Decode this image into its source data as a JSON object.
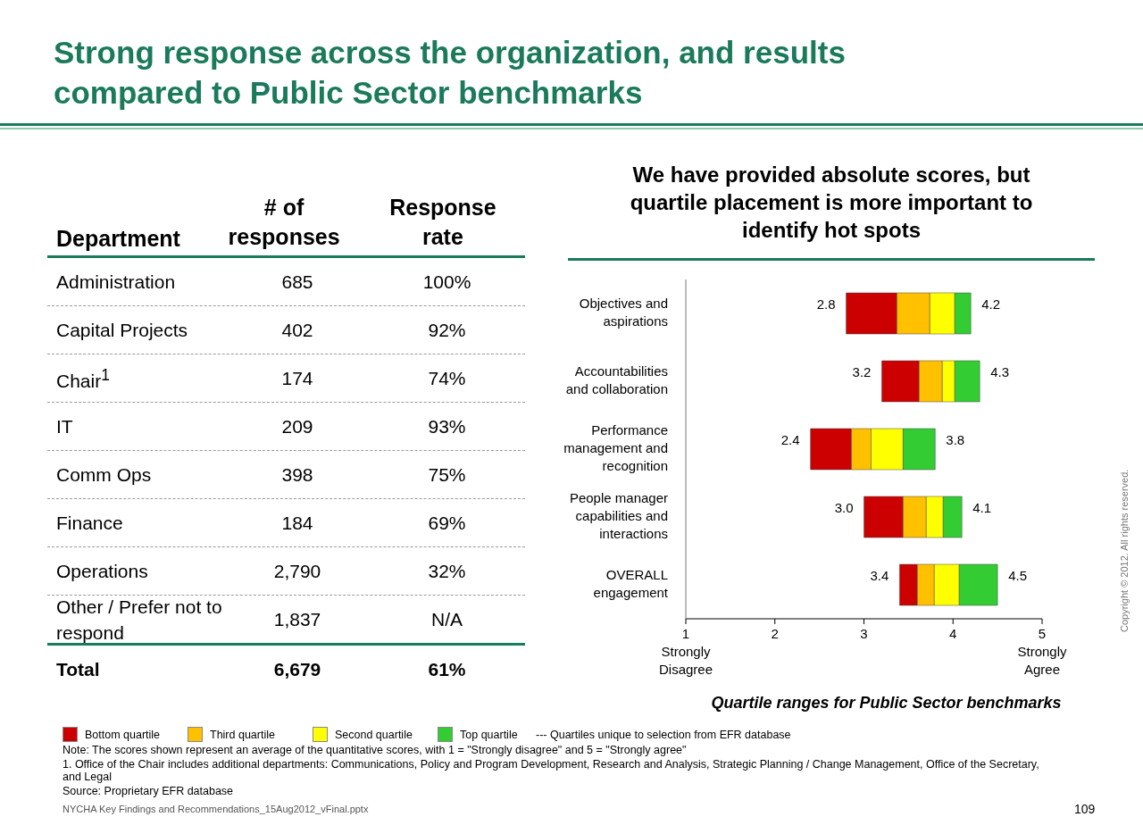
{
  "chart_data": [
    {
      "type": "other",
      "title": "Strong response across the organization, and results compared to Public Sector benchmarks",
      "xlabel": "Department",
      "categories": [
        "Administration",
        "Capital Projects",
        "Chair$^{1}$",
        "IT",
        "Comm Ops",
        "Finance",
        "Operations",
        "Other / Prefer not to respond",
        "Total"
      ],
      "series": [
        {
          "name": "# of responses",
          "values": [
            685,
            402,
            174,
            209,
            398,
            184,
            2790,
            1837,
            6679
          ],
          "value_labels": [
            "685",
            "402",
            "174",
            "209",
            "398",
            "184",
            "2,790",
            "1,837",
            "6,679"
          ]
        },
        {
          "name": "Response rate",
          "values": [
            100,
            92,
            74,
            93,
            75,
            69,
            32,
            null,
            61
          ],
          "value_labels": [
            "100%",
            "92%",
            "74%",
            "93%",
            "75%",
            "69%",
            "32%",
            "N/A",
            "61%"
          ]
        }
      ]
    },
    {
      "type": "bar",
      "orientation": "horizontal",
      "title": "We have provided absolute scores, but quartile placement is more important to identify hot spots",
      "xlabel": "Quartile ranges for Public Sector benchmarks",
      "categories": [
        "Objectives and aspirations",
        "Accountabilities and collaboration",
        "Performance management and recognition",
        "People manager capabilities and interactions",
        "OVERALL engagement"
      ],
      "series": [
        {
          "name": "Bottom quartile",
          "color": "#cc0000",
          "base": [
            2.8,
            3.2,
            2.4,
            3.0,
            3.4
          ],
          "values": [
            0.57,
            0.42,
            0.46,
            0.44,
            0.2
          ]
        },
        {
          "name": "Third quartile",
          "color": "#ffc000",
          "base": [
            3.37,
            3.62,
            2.86,
            3.44,
            3.6
          ],
          "values": [
            0.37,
            0.26,
            0.22,
            0.26,
            0.19
          ]
        },
        {
          "name": "Second quartile",
          "color": "#ffff00",
          "base": [
            3.74,
            3.88,
            3.08,
            3.7,
            3.79
          ],
          "values": [
            0.28,
            0.14,
            0.36,
            0.19,
            0.28
          ]
        },
        {
          "name": "Top quartile",
          "color": "#33cc33",
          "base": [
            4.02,
            4.02,
            3.44,
            3.89,
            4.07
          ],
          "values": [
            0.18,
            0.28,
            0.36,
            0.21,
            0.43
          ]
        }
      ],
      "xlim": [
        1,
        5
      ],
      "xticks": [
        {
          "value": 1,
          "label": "1\nStrongly\nDisagree"
        },
        2,
        3,
        4,
        {
          "value": 5,
          "label": "5\nStrongly\nAgree"
        }
      ],
      "legend": "bottom",
      "annotations": [
        "2.8",
        "4.2",
        "3.2",
        "4.3",
        "2.4",
        "3.8",
        "3.0",
        "4.1",
        "3.4",
        "4.5",
        "--- Quartiles unique to selection from EFR database",
        "Note: The scores shown represent an average of the quantitative scores, with 1 = \"Strongly disagree\" and 5 = \"Strongly agree\"",
        "1. Office of the Chair includes additional departments: Communications, Policy and Program Development, Research and Analysis, Strategic Planning / Change Management, Office of the Secretary, and Legal",
        "Source: Proprietary EFR database",
        "NYCHA Key Findings and Recommendations_15Aug2012_vFinal.pptx",
        "109",
        "Copyright © 2012. All rights reserved."
      ]
    }
  ]
}
